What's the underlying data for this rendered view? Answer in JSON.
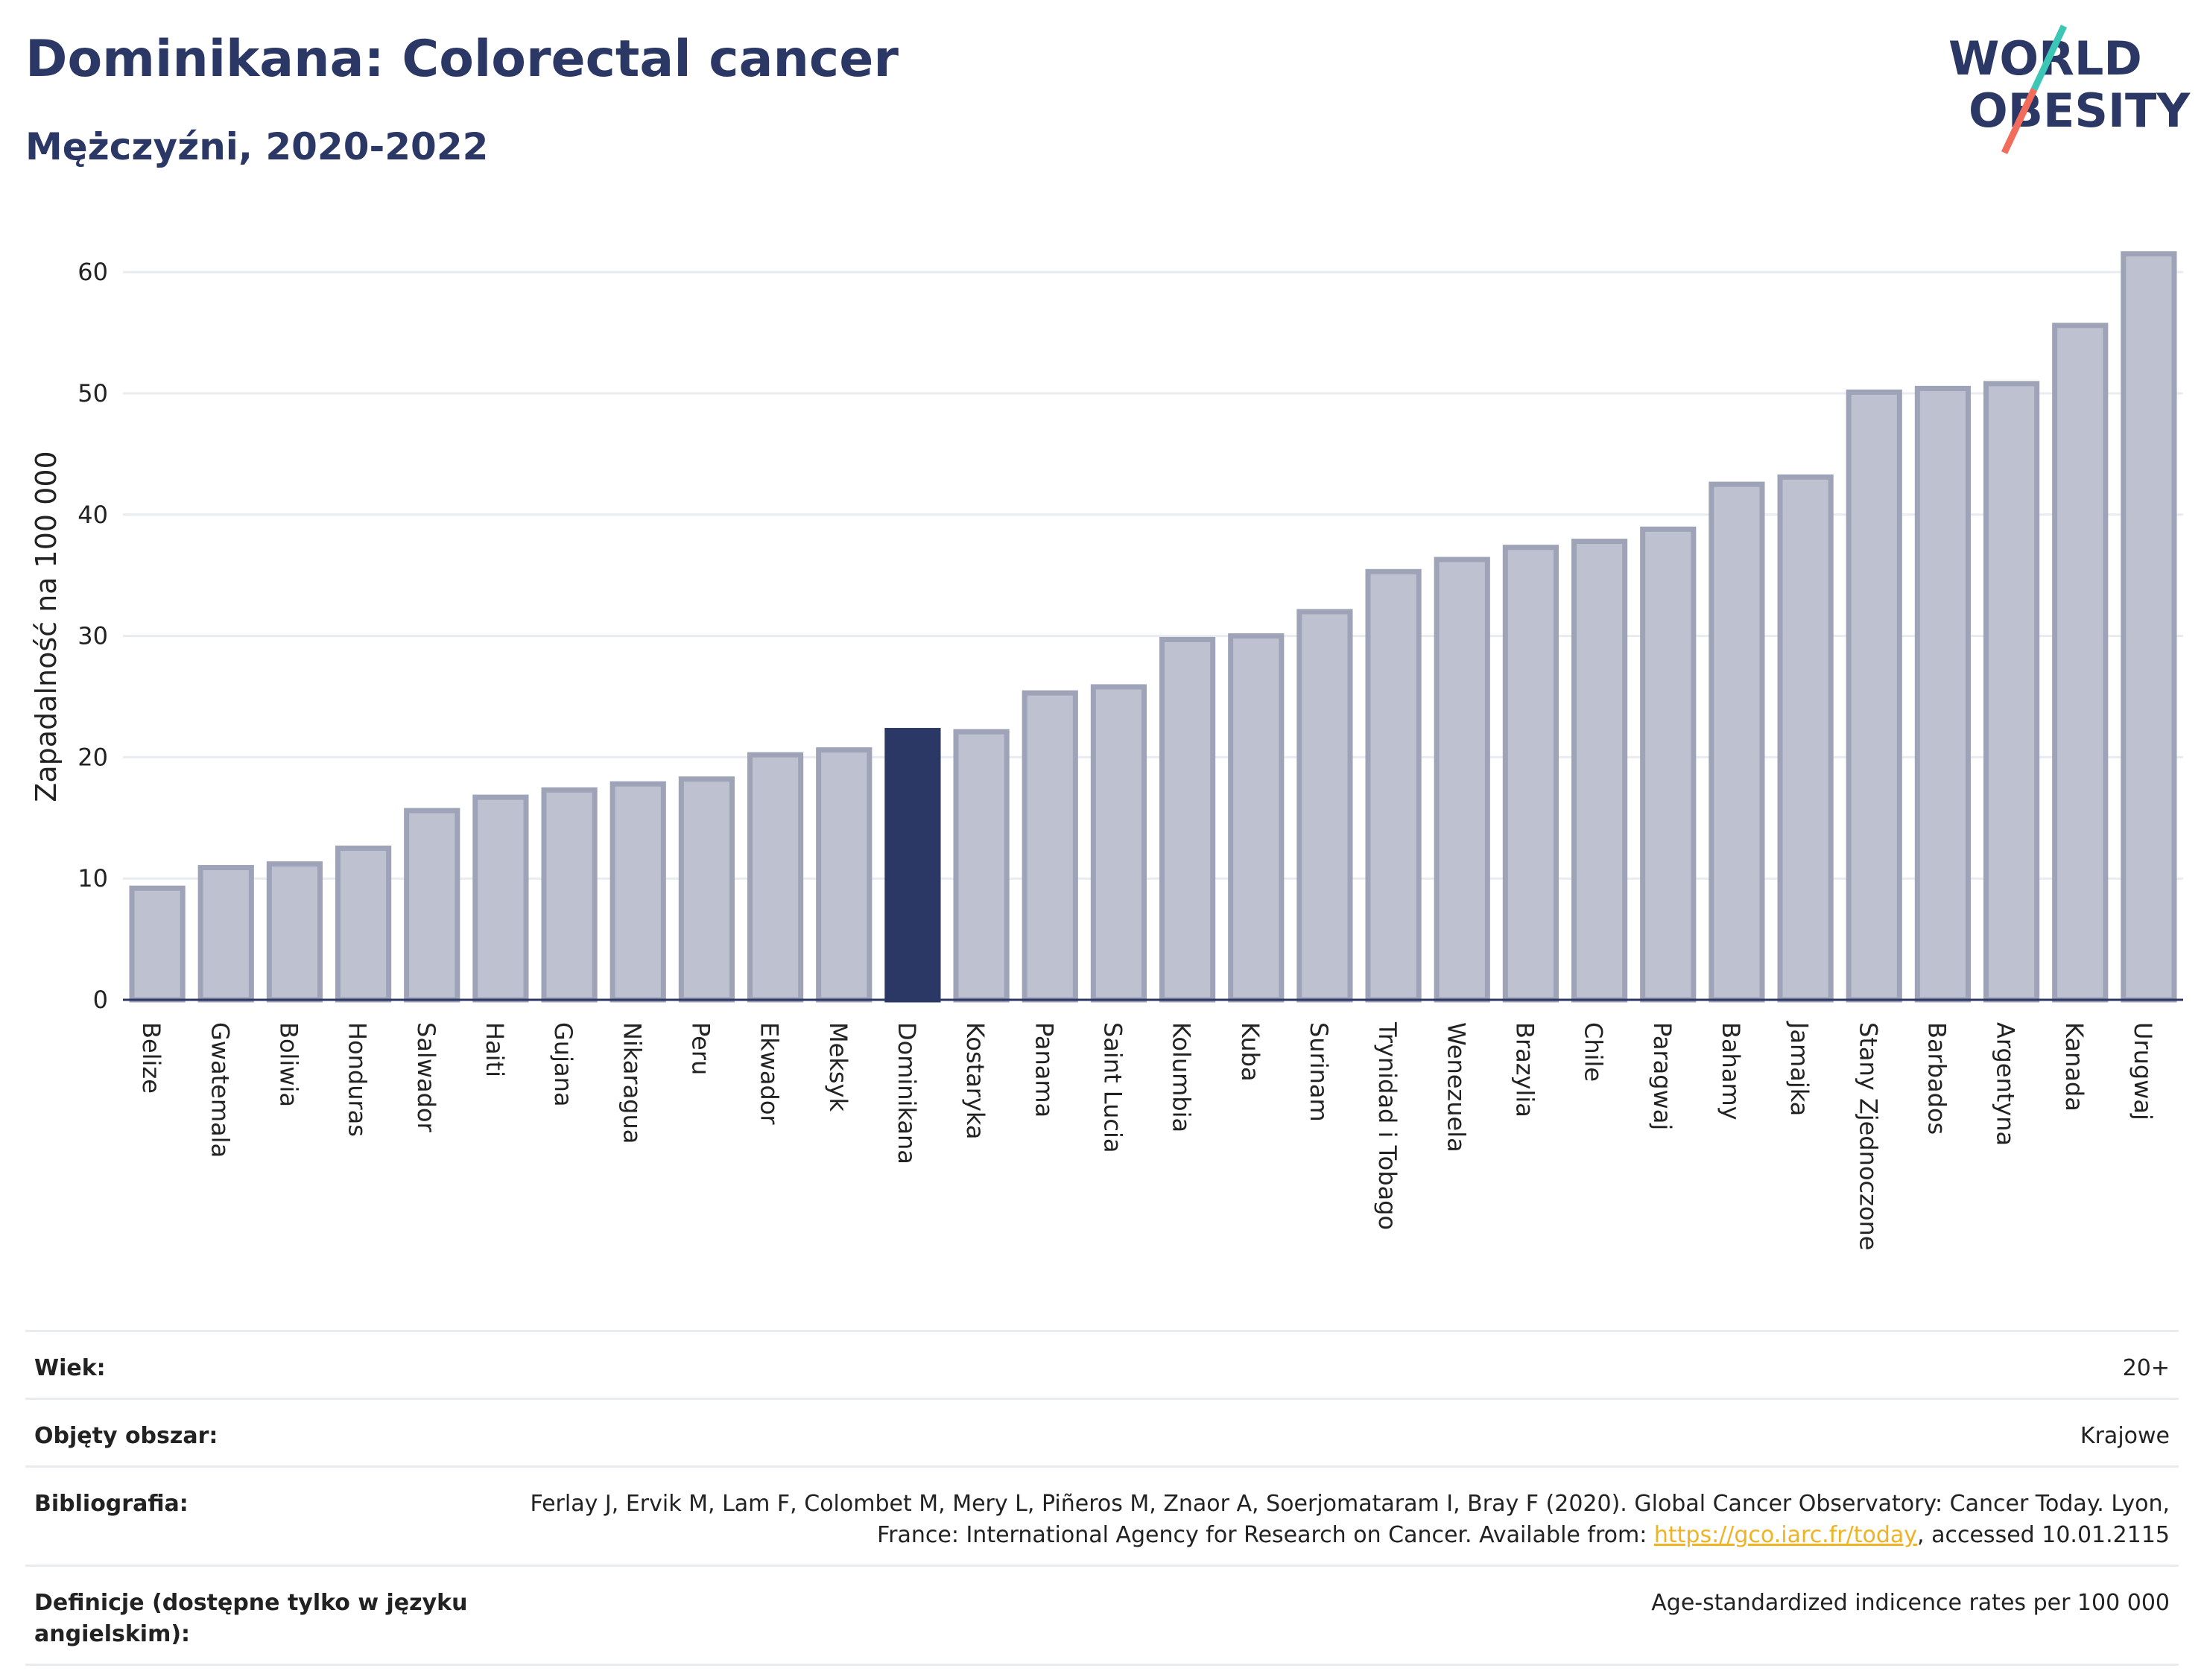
{
  "header": {
    "title": "Dominikana: Colorectal cancer",
    "subtitle": "Mężczyźni, 2020-2022"
  },
  "logo": {
    "line1": "WORLD",
    "line2": "OBESITY",
    "text_color": "#2b3764",
    "slash_colors": [
      "#3cc6b5",
      "#f26b5b"
    ]
  },
  "colors": {
    "bar_fill": "#bec1cf",
    "bar_stroke": "#9ea3b8",
    "highlight": "#2b3764",
    "grid": "#e8ebf0"
  },
  "chart_data": {
    "type": "bar",
    "ylabel": "Zapadalność na 100 000",
    "xlabel": "",
    "ylim": [
      0,
      64
    ],
    "yticks": [
      0,
      10,
      20,
      30,
      40,
      50,
      60
    ],
    "grid": "horizontal",
    "highlight": "Dominikana",
    "categories": [
      "Belize",
      "Gwatemala",
      "Boliwia",
      "Honduras",
      "Salwador",
      "Haiti",
      "Gujana",
      "Nikaragua",
      "Peru",
      "Ekwador",
      "Meksyk",
      "Dominikana",
      "Kostaryka",
      "Panama",
      "Saint Lucia",
      "Kolumbia",
      "Kuba",
      "Surinam",
      "Trynidad i Tobago",
      "Wenezuela",
      "Brazylia",
      "Chile",
      "Paragwaj",
      "Bahamy",
      "Jamajka",
      "Stany Zjednoczone",
      "Barbados",
      "Argentyna",
      "Kanada",
      "Urugwaj"
    ],
    "values": [
      9.2,
      10.9,
      11.2,
      12.5,
      15.6,
      16.7,
      17.3,
      17.8,
      18.2,
      20.2,
      20.6,
      22.2,
      22.1,
      25.3,
      25.8,
      29.7,
      30.0,
      32.0,
      35.3,
      36.3,
      37.3,
      37.8,
      38.8,
      42.5,
      43.1,
      50.1,
      50.4,
      50.8,
      55.6,
      61.5
    ]
  },
  "meta": {
    "rows": [
      {
        "key": "Wiek:",
        "value": "20+"
      },
      {
        "key": "Objęty obszar:",
        "value": "Krajowe"
      },
      {
        "key": "Bibliografia:",
        "value": "Ferlay J, Ervik M, Lam F, Colombet M, Mery L, Piñeros M, Znaor A, Soerjomataram I, Bray F (2020). Global Cancer Observatory: Cancer Today. Lyon, France: International Agency for Research on Cancer. Available from: ",
        "link": "https://gco.iarc.fr/today",
        "suffix": ", accessed 10.01.2115"
      },
      {
        "key": "Definicje (dostępne tylko w języku angielskim):",
        "value": "Age-standardized indicence rates per 100 000"
      }
    ]
  }
}
